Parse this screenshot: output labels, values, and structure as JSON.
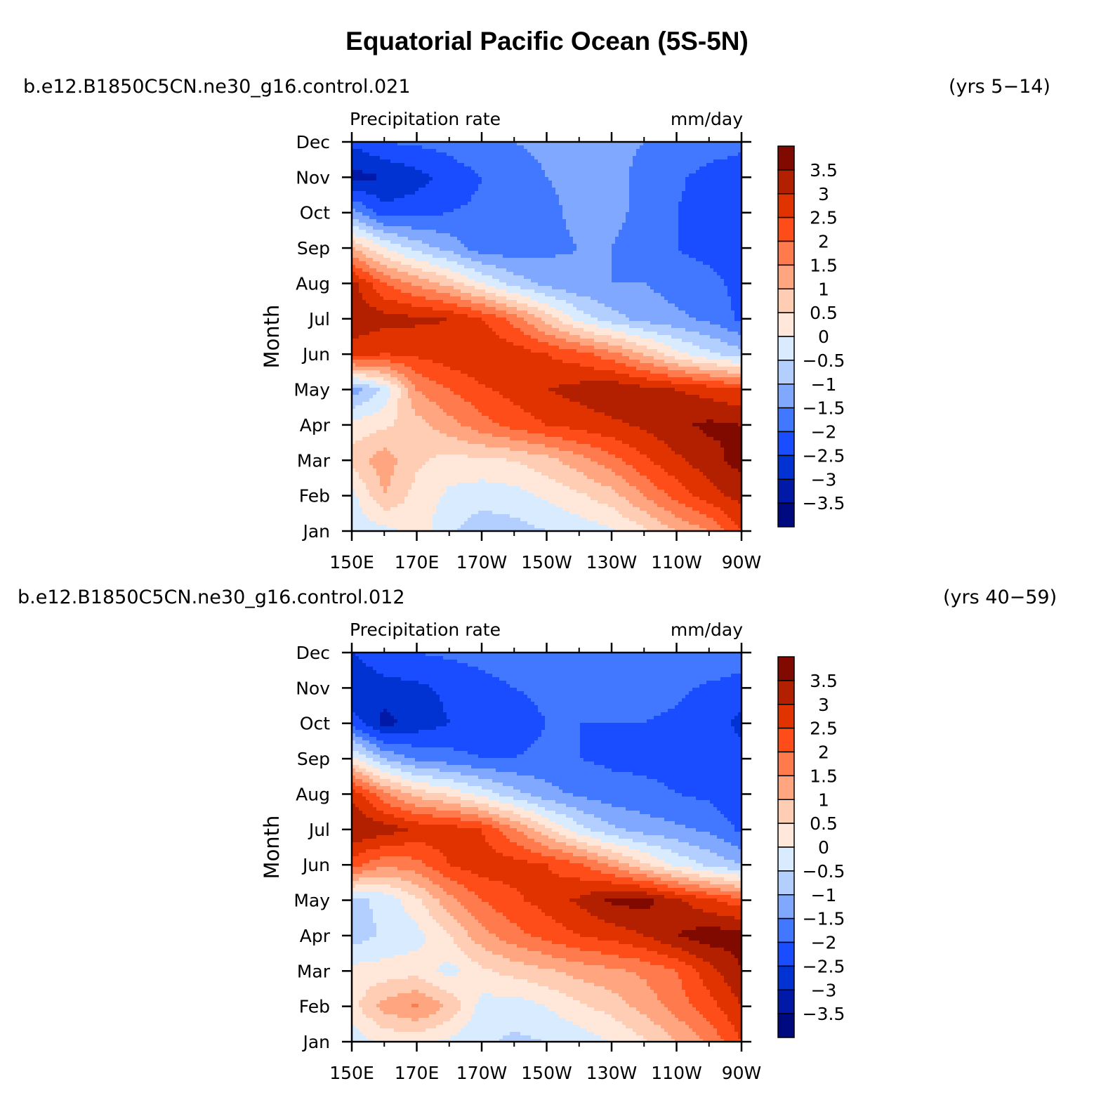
{
  "title": "Equatorial Pacific Ocean (5S-5N)",
  "colors": {
    "levels": [
      -3.5,
      -3,
      -2.5,
      -2,
      -1.5,
      -1,
      -0.5,
      0,
      0.5,
      1,
      1.5,
      2,
      2.5,
      3,
      3.5
    ],
    "palette": [
      "#000a80",
      "#0019a6",
      "#0033d1",
      "#1a4dff",
      "#4277ff",
      "#80a8ff",
      "#b3cfff",
      "#d9ebff",
      "#ffe8d9",
      "#ffcdb3",
      "#ffa680",
      "#ff7a4d",
      "#ff4d1a",
      "#e03300",
      "#b32000",
      "#800a00"
    ]
  },
  "chart_data": [
    {
      "type": "heatmap",
      "run": "b.e12.B1850C5CN.ne30_g16.control.021",
      "years": "(yrs 5−14)",
      "title_left": "Precipitation rate",
      "title_right": "mm/day",
      "ylabel": "Month",
      "x_ticks": [
        "150E",
        "170E",
        "170W",
        "150W",
        "130W",
        "110W",
        "90W"
      ],
      "x_lon": [
        150,
        170,
        190,
        210,
        230,
        250,
        270
      ],
      "xlim": [
        150,
        270
      ],
      "y_ticks": [
        "Jan",
        "Feb",
        "Mar",
        "Apr",
        "May",
        "Jun",
        "Jul",
        "Aug",
        "Sep",
        "Oct",
        "Nov",
        "Dec"
      ],
      "colorbar_labels": [
        "3.5",
        "3",
        "2.5",
        "2",
        "1.5",
        "1",
        "0.5",
        "0",
        "−0.5",
        "−1",
        "−1.5",
        "−2",
        "−2.5",
        "−3",
        "−3.5"
      ],
      "field": {
        "lon": [
          150,
          160,
          170,
          180,
          190,
          200,
          210,
          220,
          230,
          240,
          250,
          260,
          270
        ],
        "month": [
          "Jan",
          "Feb",
          "Mar",
          "Apr",
          "May",
          "Jun",
          "Jul",
          "Aug",
          "Sep",
          "Oct",
          "Nov",
          "Dec"
        ],
        "values": [
          [
            -0.3,
            -0.2,
            0.3,
            -0.4,
            -0.8,
            -0.7,
            -0.5,
            -0.3,
            -0.1,
            0.4,
            1.0,
            1.5,
            2.5
          ],
          [
            -0.2,
            1.0,
            0.3,
            -0.1,
            -0.3,
            -0.2,
            0.1,
            0.4,
            0.8,
            1.5,
            2.2,
            2.8,
            3.2
          ],
          [
            0.7,
            1.3,
            0.6,
            0.3,
            0.4,
            0.5,
            0.8,
            1.3,
            1.8,
            2.4,
            2.9,
            3.3,
            3.7
          ],
          [
            0.2,
            0.4,
            0.8,
            1.3,
            1.8,
            2.2,
            2.5,
            2.7,
            2.9,
            3.1,
            3.4,
            3.6,
            3.5
          ],
          [
            -1.3,
            -0.4,
            1.5,
            2.0,
            2.4,
            2.7,
            3.0,
            3.2,
            3.4,
            3.2,
            3.0,
            2.8,
            2.5
          ],
          [
            2.7,
            2.5,
            2.6,
            2.8,
            3.0,
            2.8,
            2.5,
            2.2,
            1.7,
            1.0,
            0.2,
            -0.4,
            -0.8
          ],
          [
            3.4,
            3.2,
            3.1,
            3.0,
            2.5,
            1.8,
            0.8,
            -0.2,
            -0.8,
            -1.2,
            -1.4,
            -1.6,
            -2.1
          ],
          [
            3.2,
            2.0,
            1.4,
            0.8,
            0.0,
            -0.7,
            -1.2,
            -1.4,
            -1.5,
            -1.5,
            -1.7,
            -1.8,
            -2.2
          ],
          [
            1.0,
            0.0,
            -0.7,
            -1.2,
            -1.8,
            -1.8,
            -1.6,
            -1.5,
            -1.5,
            -1.7,
            -2.0,
            -2.2,
            -2.4
          ],
          [
            -1.3,
            -2.3,
            -2.2,
            -2.0,
            -1.9,
            -1.8,
            -1.6,
            -1.4,
            -1.4,
            -1.6,
            -2.0,
            -2.3,
            -2.5
          ],
          [
            -3.2,
            -3.0,
            -2.7,
            -2.3,
            -2.0,
            -1.7,
            -1.5,
            -1.4,
            -1.4,
            -1.6,
            -1.9,
            -2.2,
            -2.4
          ],
          [
            -2.4,
            -2.0,
            -1.9,
            -1.8,
            -1.6,
            -1.5,
            -1.4,
            -1.4,
            -1.4,
            -1.5,
            -1.6,
            -1.7,
            -1.8
          ]
        ]
      }
    },
    {
      "type": "heatmap",
      "run": "b.e12.B1850C5CN.ne30_g16.control.012",
      "years": "(yrs 40−59)",
      "title_left": "Precipitation rate",
      "title_right": "mm/day",
      "ylabel": "Month",
      "x_ticks": [
        "150E",
        "170E",
        "170W",
        "150W",
        "130W",
        "110W",
        "90W"
      ],
      "x_lon": [
        150,
        170,
        190,
        210,
        230,
        250,
        270
      ],
      "xlim": [
        150,
        270
      ],
      "y_ticks": [
        "Jan",
        "Feb",
        "Mar",
        "Apr",
        "May",
        "Jun",
        "Jul",
        "Aug",
        "Sep",
        "Oct",
        "Nov",
        "Dec"
      ],
      "colorbar_labels": [
        "3.5",
        "3",
        "2.5",
        "2",
        "1.5",
        "1",
        "0.5",
        "0",
        "−0.5",
        "−1",
        "−1.5",
        "−2",
        "−2.5",
        "−3",
        "−3.5"
      ],
      "field": {
        "lon": [
          150,
          160,
          170,
          180,
          190,
          200,
          210,
          220,
          230,
          240,
          250,
          260,
          270
        ],
        "month": [
          "Jan",
          "Feb",
          "Mar",
          "Apr",
          "May",
          "Jun",
          "Jul",
          "Aug",
          "Sep",
          "Oct",
          "Nov",
          "Dec"
        ],
        "values": [
          [
            -0.3,
            0.1,
            0.1,
            -0.1,
            -0.4,
            -0.6,
            -0.5,
            -0.3,
            0.0,
            0.4,
            1.0,
            1.6,
            2.5
          ],
          [
            0.3,
            1.2,
            1.6,
            0.9,
            -0.2,
            -0.3,
            0.0,
            0.4,
            0.7,
            1.2,
            1.7,
            2.3,
            3.0
          ],
          [
            0.2,
            0.2,
            0.3,
            -0.2,
            0.4,
            0.7,
            0.9,
            1.2,
            1.4,
            1.6,
            2.0,
            2.8,
            3.5
          ],
          [
            -0.8,
            -0.4,
            -0.2,
            0.5,
            1.3,
            1.8,
            2.2,
            2.5,
            2.7,
            3.0,
            3.5,
            3.8,
            3.7
          ],
          [
            -0.6,
            -0.4,
            0.4,
            1.3,
            2.0,
            2.4,
            2.7,
            3.1,
            3.6,
            3.7,
            3.1,
            2.6,
            2.2
          ],
          [
            2.2,
            1.6,
            1.8,
            2.5,
            2.8,
            2.7,
            2.5,
            2.1,
            1.4,
            0.6,
            -0.1,
            -0.6,
            -1.0
          ],
          [
            3.5,
            3.3,
            2.9,
            2.8,
            2.5,
            1.6,
            0.6,
            -0.3,
            -0.9,
            -1.2,
            -1.4,
            -1.6,
            -2.1
          ],
          [
            2.9,
            1.6,
            0.8,
            0.4,
            -0.2,
            -0.8,
            -1.3,
            -1.6,
            -1.8,
            -1.9,
            -2.0,
            -2.1,
            -2.4
          ],
          [
            0.2,
            -1.0,
            -1.6,
            -1.8,
            -2.0,
            -2.0,
            -1.9,
            -2.0,
            -2.1,
            -2.1,
            -2.1,
            -2.2,
            -2.4
          ],
          [
            -2.2,
            -3.2,
            -2.8,
            -2.5,
            -2.3,
            -2.2,
            -2.0,
            -2.0,
            -2.0,
            -2.0,
            -2.1,
            -2.3,
            -2.6
          ],
          [
            -3.0,
            -2.7,
            -2.6,
            -2.4,
            -2.2,
            -2.0,
            -1.9,
            -1.8,
            -1.8,
            -1.8,
            -1.9,
            -2.1,
            -2.3
          ],
          [
            -2.5,
            -2.1,
            -2.0,
            -1.9,
            -1.8,
            -1.7,
            -1.6,
            -1.5,
            -1.5,
            -1.5,
            -1.5,
            -1.5,
            -1.6
          ]
        ]
      }
    }
  ]
}
